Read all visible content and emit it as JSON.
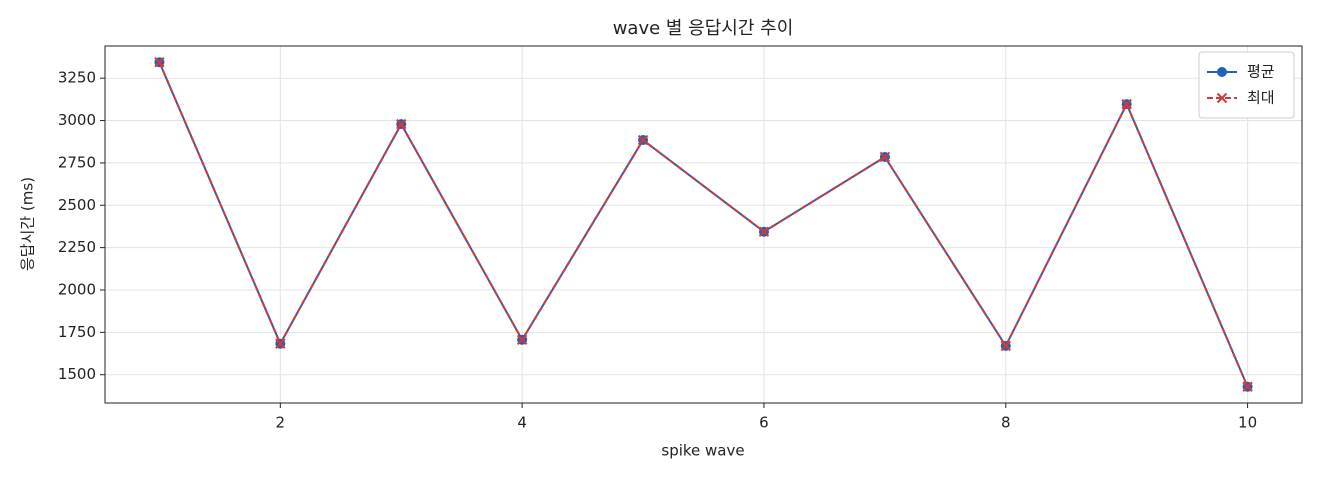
{
  "chart_data": {
    "type": "line",
    "title": "wave 별 응답시간 추이",
    "xlabel": "spike wave",
    "ylabel": "응답시간 (ms)",
    "x": [
      1,
      2,
      3,
      4,
      5,
      6,
      7,
      8,
      9,
      10
    ],
    "series": [
      {
        "name": "평균",
        "color": "#1f62b8",
        "marker": "o",
        "dash": false,
        "values": [
          3344,
          1683,
          2979,
          1706,
          2885,
          2344,
          2785,
          1670,
          3097,
          1429
        ]
      },
      {
        "name": "최대",
        "color": "#d13a3a",
        "marker": "x",
        "dash": true,
        "values": [
          3344,
          1683,
          2979,
          1706,
          2885,
          2344,
          2785,
          1670,
          3097,
          1429
        ]
      }
    ],
    "xlim": [
      0.55,
      10.45
    ],
    "ylim": [
      1333,
      3440
    ],
    "xticks": [
      2,
      4,
      6,
      8,
      10
    ],
    "yticks": [
      1500,
      1750,
      2000,
      2250,
      2500,
      2750,
      3000,
      3250
    ],
    "grid": true,
    "legend": "upper right"
  }
}
